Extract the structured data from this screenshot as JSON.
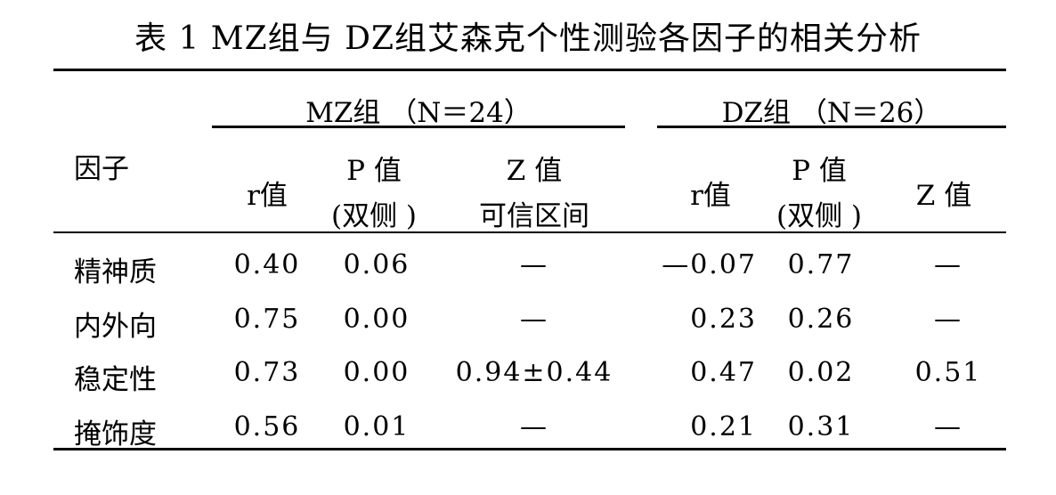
{
  "table": {
    "title": "表 1   MZ组与 DZ组艾森克个性测验各因子的相关分析",
    "row_header": "因子",
    "groups": [
      {
        "label": "MZ组 （N＝24）"
      },
      {
        "label": "DZ组 （N＝26）"
      }
    ],
    "columns": {
      "mz_r": "r值",
      "mz_p_line1": "P 值",
      "mz_p_line2": "(双侧 )",
      "mz_z_line1": "Z 值",
      "mz_z_line2": "可信区间",
      "dz_r": "r值",
      "dz_p_line1": "P 值",
      "dz_p_line2": "(双侧 )",
      "dz_z": "Z 值"
    },
    "rows": [
      {
        "factor": "精神质",
        "mz_r": "0.40",
        "mz_p": "0.06",
        "mz_z": "—",
        "dz_r": "—0.07",
        "dz_p": "0.77",
        "dz_z": "—"
      },
      {
        "factor": "内外向",
        "mz_r": "0.75",
        "mz_p": "0.00",
        "mz_z": "—",
        "dz_r": "0.23",
        "dz_p": "0.26",
        "dz_z": "—"
      },
      {
        "factor": "稳定性",
        "mz_r": "0.73",
        "mz_p": "0.00",
        "mz_z": "0.94±0.44",
        "dz_r": "0.47",
        "dz_p": "0.02",
        "dz_z": "0.51"
      },
      {
        "factor": "掩饰度",
        "mz_r": "0.56",
        "mz_p": "0.01",
        "mz_z": "—",
        "dz_r": "0.21",
        "dz_p": "0.31",
        "dz_z": "—"
      }
    ]
  }
}
